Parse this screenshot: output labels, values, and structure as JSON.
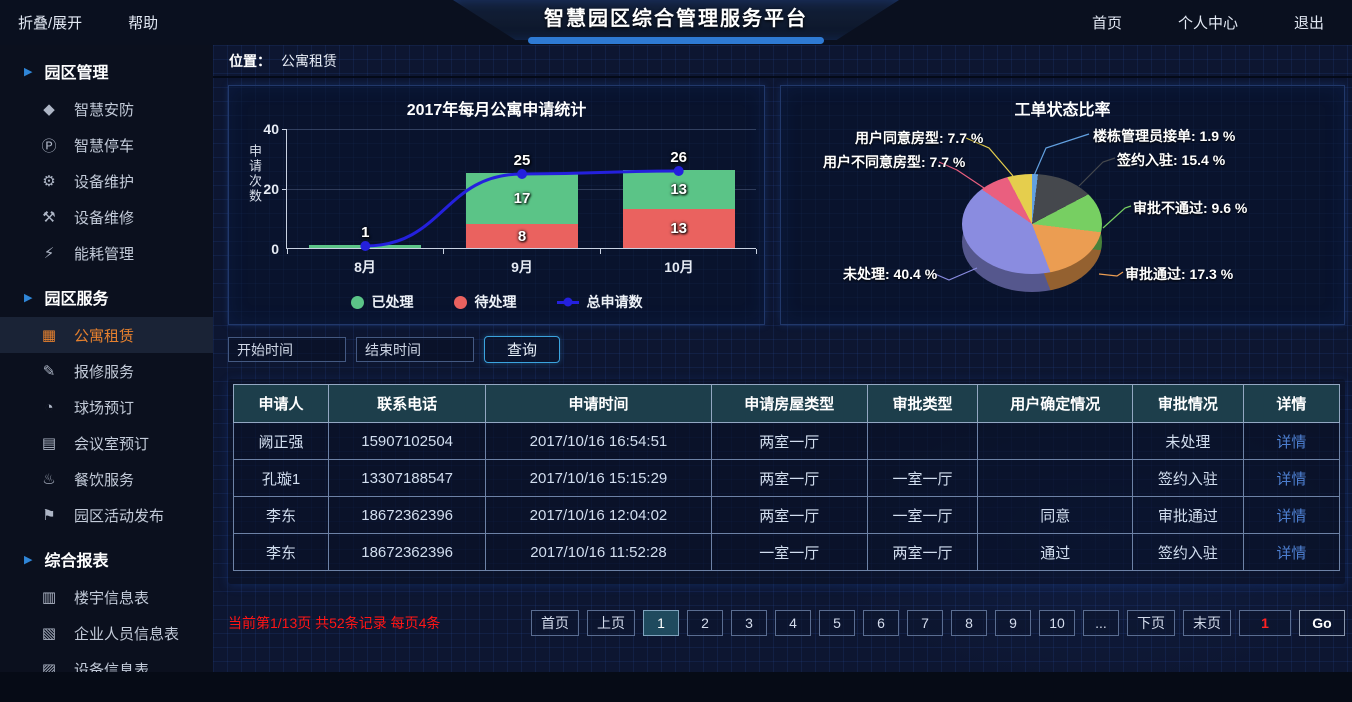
{
  "topbar": {
    "collapse": "折叠/展开",
    "help": "帮助",
    "title": "智慧园区综合管理服务平台",
    "home": "首页",
    "profile": "个人中心",
    "logout": "退出"
  },
  "breadcrumb": {
    "label": "位置：",
    "value": "公寓租赁"
  },
  "sidebar": {
    "items": [
      {
        "type": "section",
        "label": "园区管理"
      },
      {
        "type": "item",
        "icon": "shield-icon",
        "glyph": "◆",
        "label": "智慧安防"
      },
      {
        "type": "item",
        "icon": "parking-icon",
        "glyph": "Ⓟ",
        "label": "智慧停车"
      },
      {
        "type": "item",
        "icon": "gear-icon",
        "glyph": "⚙",
        "label": "设备维护"
      },
      {
        "type": "item",
        "icon": "tools-icon",
        "glyph": "⚒",
        "label": "设备维修"
      },
      {
        "type": "item",
        "icon": "energy-icon",
        "glyph": "⚡",
        "label": "能耗管理"
      },
      {
        "type": "section",
        "label": "园区服务"
      },
      {
        "type": "item",
        "icon": "building-icon",
        "glyph": "▦",
        "label": "公寓租赁",
        "active": true
      },
      {
        "type": "item",
        "icon": "repair-icon",
        "glyph": "✎",
        "label": "报修服务"
      },
      {
        "type": "item",
        "icon": "clock-icon",
        "glyph": "◔",
        "label": "球场预订"
      },
      {
        "type": "item",
        "icon": "meeting-icon",
        "glyph": "▤",
        "label": "会议室预订"
      },
      {
        "type": "item",
        "icon": "food-icon",
        "glyph": "♨",
        "label": "餐饮服务"
      },
      {
        "type": "item",
        "icon": "flag-icon",
        "glyph": "⚑",
        "label": "园区活动发布"
      },
      {
        "type": "section",
        "label": "综合报表"
      },
      {
        "type": "item",
        "icon": "building-table-icon",
        "glyph": "▥",
        "label": "楼宇信息表"
      },
      {
        "type": "item",
        "icon": "people-table-icon",
        "glyph": "▧",
        "label": "企业人员信息表"
      },
      {
        "type": "item",
        "icon": "device-table-icon",
        "glyph": "▨",
        "label": "设备信息表"
      }
    ]
  },
  "chart_data": [
    {
      "type": "bar",
      "title": "2017年每月公寓申请统计",
      "xlabel": "",
      "ylabel": "申请次数",
      "ylim": [
        0,
        40
      ],
      "yticks": [
        0,
        20,
        40
      ],
      "categories": [
        "8月",
        "9月",
        "10月"
      ],
      "series": [
        {
          "name": "已处理",
          "type": "bar",
          "color": "#5bc487",
          "values": [
            1,
            17,
            13
          ]
        },
        {
          "name": "待处理",
          "type": "bar",
          "color": "#ea625f",
          "values": [
            0,
            8,
            13
          ]
        },
        {
          "name": "总申请数",
          "type": "line",
          "color": "#2420dd",
          "values": [
            1,
            25,
            26
          ]
        }
      ],
      "legend_position": "bottom",
      "grid": true,
      "stacked": true
    },
    {
      "type": "pie",
      "title": "工单状态比率",
      "slices": [
        {
          "label": "楼栋管理员接单",
          "pct": 1.9,
          "color": "#62a0e0"
        },
        {
          "label": "签约入驻",
          "pct": 15.4,
          "color": "#45484d"
        },
        {
          "label": "审批不通过",
          "pct": 9.6,
          "color": "#77cf62"
        },
        {
          "label": "审批通过",
          "pct": 17.3,
          "color": "#eb9d52"
        },
        {
          "label": "未处理",
          "pct": 40.4,
          "color": "#8a8ce0"
        },
        {
          "label": "用户不同意房型",
          "pct": 7.7,
          "color": "#ea5f7f"
        },
        {
          "label": "用户同意房型",
          "pct": 7.7,
          "color": "#e5ce4d"
        }
      ]
    }
  ],
  "filters": {
    "start_placeholder": "开始时间",
    "end_placeholder": "结束时间",
    "search_label": "查询"
  },
  "table": {
    "headers": [
      "申请人",
      "联系电话",
      "申请时间",
      "申请房屋类型",
      "审批类型",
      "用户确定情况",
      "审批情况",
      "详情"
    ],
    "rows": [
      [
        "阙正强",
        "15907102504",
        "2017/10/16 16:54:51",
        "两室一厅",
        "",
        "",
        "未处理",
        "详情"
      ],
      [
        "孔璇1",
        "13307188547",
        "2017/10/16 15:15:29",
        "两室一厅",
        "一室一厅",
        "",
        "签约入驻",
        "详情"
      ],
      [
        "李东",
        "18672362396",
        "2017/10/16 12:04:02",
        "两室一厅",
        "一室一厅",
        "同意",
        "审批通过",
        "详情"
      ],
      [
        "李东",
        "18672362396",
        "2017/10/16 11:52:28",
        "一室一厅",
        "两室一厅",
        "通过",
        "签约入驻",
        "详情"
      ]
    ]
  },
  "pagination": {
    "info": "当前第1/13页 共52条记录 每页4条",
    "buttons": [
      "首页",
      "上页",
      "1",
      "2",
      "3",
      "4",
      "5",
      "6",
      "7",
      "8",
      "9",
      "10",
      "...",
      "下页",
      "末页"
    ],
    "active_index": 2,
    "jump_value": "1",
    "go_label": "Go"
  }
}
